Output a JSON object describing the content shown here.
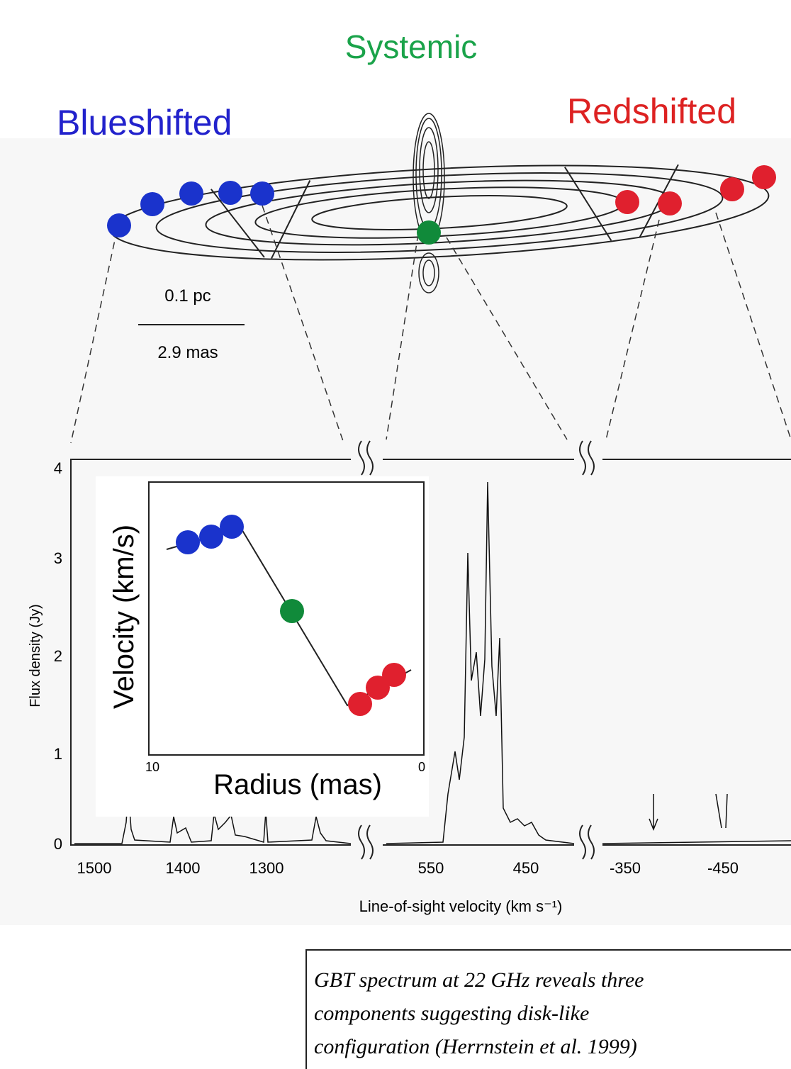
{
  "labels": {
    "systemic": "Systemic",
    "blueshifted": "Blueshifted",
    "redshifted": "Redshifted"
  },
  "scale": {
    "pc": "0.1 pc",
    "mas": "2.9 mas"
  },
  "spectrum": {
    "y_axis_title": "Flux density (Jy)",
    "y_ticks": [
      "0",
      "1",
      "2",
      "3",
      "4"
    ],
    "x_axis_title": "Line-of-sight velocity (km s⁻¹)",
    "x_ticks": [
      "1500",
      "1400",
      "1300",
      "550",
      "450",
      "-350",
      "-450"
    ]
  },
  "inset": {
    "y_axis_title": "Velocity (km/s)",
    "x_axis_title": "Radius (mas)",
    "x_ticks": [
      "10",
      "0"
    ]
  },
  "caption": [
    "GBT spectrum at 22 GHz reveals three",
    "components suggesting disk-like",
    "configuration (Herrnstein et al. 1999)"
  ]
}
